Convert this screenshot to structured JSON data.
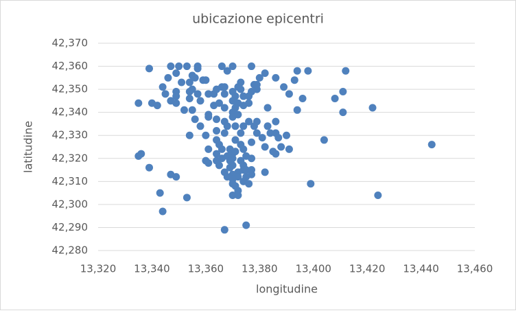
{
  "chart_data": {
    "type": "scatter",
    "title": "ubicazione epicentri",
    "x_label": "longitudine",
    "y_label": "latitudine",
    "color": "#4f81bd",
    "grid": true,
    "xlim": [
      13.32,
      13.46
    ],
    "xticks": [
      {
        "value": 13.32,
        "label": "13,320"
      },
      {
        "value": 13.34,
        "label": "13,340"
      },
      {
        "value": 13.36,
        "label": "13,360"
      },
      {
        "value": 13.38,
        "label": "13,380"
      },
      {
        "value": 13.4,
        "label": "13,400"
      },
      {
        "value": 13.42,
        "label": "13,420"
      },
      {
        "value": 13.44,
        "label": "13,440"
      },
      {
        "value": 13.46,
        "label": "13,460"
      }
    ],
    "ylim": [
      42.28,
      42.37
    ],
    "yticks": [
      {
        "value": 42.28,
        "label": "42,280"
      },
      {
        "value": 42.29,
        "label": "42,290"
      },
      {
        "value": 42.3,
        "label": "42,300"
      },
      {
        "value": 42.31,
        "label": "42,310"
      },
      {
        "value": 42.32,
        "label": "42,320"
      },
      {
        "value": 42.33,
        "label": "42,330"
      },
      {
        "value": 42.34,
        "label": "42,340"
      },
      {
        "value": 42.35,
        "label": "42,350"
      },
      {
        "value": 42.36,
        "label": "42,360"
      },
      {
        "value": 42.37,
        "label": "42,370"
      }
    ],
    "x": [
      13.339,
      13.347,
      13.35,
      13.353,
      13.357,
      13.357,
      13.37,
      13.366,
      13.368,
      13.377,
      13.398,
      13.412,
      13.394,
      13.386,
      13.382,
      13.38,
      13.378,
      13.373,
      13.346,
      13.349,
      13.351,
      13.344,
      13.349,
      13.349,
      13.347,
      13.345,
      13.354,
      13.355,
      13.356,
      13.359,
      13.36,
      13.354,
      13.355,
      13.357,
      13.354,
      13.358,
      13.355,
      13.352,
      13.349,
      13.335,
      13.34,
      13.342,
      13.361,
      13.364,
      13.366,
      13.367,
      13.37,
      13.371,
      13.367,
      13.363,
      13.363,
      13.365,
      13.367,
      13.37,
      13.372,
      13.373,
      13.374,
      13.377,
      13.379,
      13.379,
      13.372,
      13.374,
      13.376,
      13.376,
      13.37,
      13.371,
      13.389,
      13.391,
      13.393,
      13.396,
      13.394,
      13.383,
      13.408,
      13.411,
      13.411,
      13.422,
      13.444,
      13.424,
      13.399,
      13.404,
      13.391,
      13.388,
      13.387,
      13.386,
      13.39,
      13.386,
      13.384,
      13.383,
      13.379,
      13.378,
      13.376,
      13.379,
      13.377,
      13.382,
      13.386,
      13.385,
      13.381,
      13.372,
      13.37,
      13.367,
      13.364,
      13.361,
      13.356,
      13.358,
      13.36,
      13.354,
      13.361,
      13.36,
      13.364,
      13.364,
      13.365,
      13.367,
      13.368,
      13.371,
      13.374,
      13.373,
      13.371,
      13.373,
      13.369,
      13.366,
      13.364,
      13.364,
      13.365,
      13.366,
      13.368,
      13.37,
      13.371,
      13.374,
      13.375,
      13.377,
      13.374,
      13.373,
      13.37,
      13.369,
      13.367,
      13.368,
      13.37,
      13.372,
      13.374,
      13.375,
      13.377,
      13.377,
      13.375,
      13.372,
      13.37,
      13.374,
      13.376,
      13.37,
      13.371,
      13.372,
      13.37,
      13.372,
      13.382,
      13.369,
      13.37,
      13.336,
      13.335,
      13.339,
      13.347,
      13.349,
      13.343,
      13.353,
      13.344,
      13.375,
      13.367,
      13.361,
      13.361
    ],
    "values": [
      42.359,
      42.36,
      42.36,
      42.36,
      42.36,
      42.359,
      42.36,
      42.36,
      42.358,
      42.36,
      42.358,
      42.358,
      42.358,
      42.355,
      42.357,
      42.355,
      42.352,
      42.353,
      42.355,
      42.357,
      42.353,
      42.351,
      42.349,
      42.347,
      42.345,
      42.348,
      42.353,
      42.356,
      42.355,
      42.354,
      42.354,
      42.349,
      42.35,
      42.348,
      42.346,
      42.345,
      42.341,
      42.341,
      42.344,
      42.344,
      42.344,
      42.343,
      42.348,
      42.35,
      42.351,
      42.351,
      42.349,
      42.347,
      42.348,
      42.348,
      42.343,
      42.344,
      42.342,
      42.345,
      42.351,
      42.35,
      42.347,
      42.349,
      42.35,
      42.352,
      42.344,
      42.343,
      42.344,
      42.347,
      42.34,
      42.342,
      42.351,
      42.348,
      42.354,
      42.346,
      42.341,
      42.342,
      42.346,
      42.349,
      42.34,
      42.342,
      42.326,
      42.304,
      42.309,
      42.328,
      42.324,
      42.325,
      42.329,
      42.336,
      42.33,
      42.331,
      42.331,
      42.334,
      42.336,
      42.334,
      42.336,
      42.331,
      42.327,
      42.325,
      42.322,
      42.323,
      42.329,
      42.339,
      42.338,
      42.336,
      42.337,
      42.338,
      42.337,
      42.334,
      42.33,
      42.33,
      42.324,
      42.319,
      42.332,
      42.328,
      42.326,
      42.331,
      42.334,
      42.334,
      42.334,
      42.331,
      42.328,
      42.326,
      42.324,
      42.324,
      42.322,
      42.319,
      42.317,
      42.32,
      42.321,
      42.322,
      42.323,
      42.324,
      42.321,
      42.32,
      42.317,
      42.319,
      42.317,
      42.316,
      42.314,
      42.312,
      42.313,
      42.314,
      42.315,
      42.315,
      42.315,
      42.313,
      42.312,
      42.312,
      42.311,
      42.31,
      42.309,
      42.309,
      42.308,
      42.306,
      42.304,
      42.304,
      42.314,
      42.319,
      42.32,
      42.322,
      42.321,
      42.316,
      42.313,
      42.312,
      42.305,
      42.303,
      42.297,
      42.291,
      42.289,
      42.318,
      42.339
    ]
  }
}
